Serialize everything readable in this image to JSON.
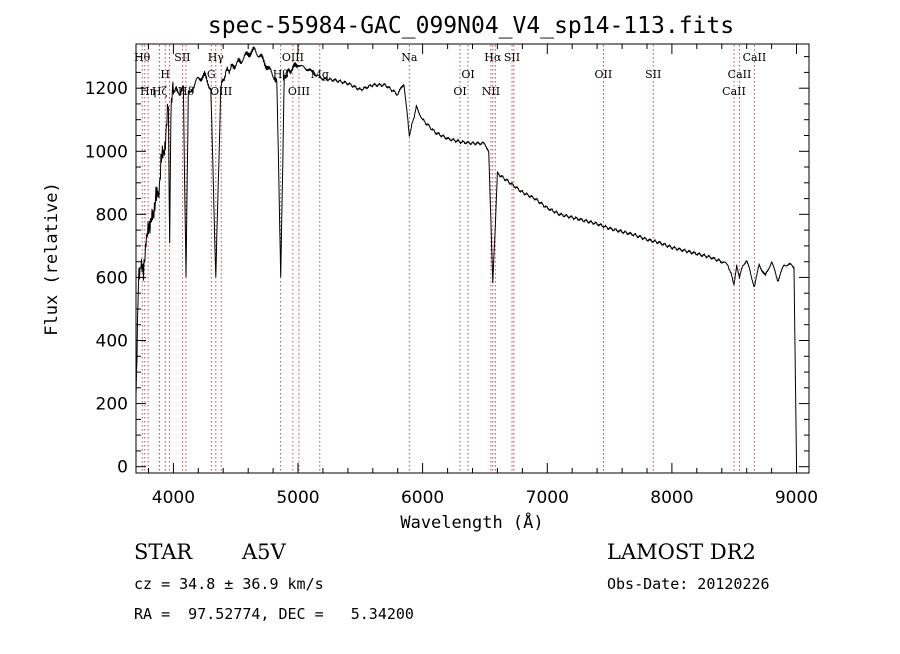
{
  "chart_data": {
    "type": "line",
    "title": "spec-55984-GAC_099N04_V4_sp14-113.fits",
    "xlabel": "Wavelength (Å)",
    "ylabel": "Flux (relative)",
    "xlim": [
      3700,
      9100
    ],
    "ylim": [
      -20,
      1340
    ],
    "grid": false,
    "x_ticks": [
      4000,
      5000,
      6000,
      7000,
      8000,
      9000
    ],
    "x_tick_labels": [
      "4000",
      "5000",
      "6000",
      "7000",
      "8000",
      "9000"
    ],
    "y_ticks": [
      0,
      200,
      400,
      600,
      800,
      1000,
      1200
    ],
    "y_tick_labels": [
      "0",
      "200",
      "400",
      "600",
      "800",
      "1000",
      "1200"
    ],
    "series": [
      {
        "x": [
          3700,
          3720,
          3740,
          3760,
          3780,
          3800,
          3820,
          3840,
          3860,
          3880,
          3900,
          3920,
          3940,
          3960,
          3970,
          3980,
          4000,
          4020,
          4050,
          4080,
          4101,
          4120,
          4150,
          4200,
          4250,
          4300,
          4340,
          4380,
          4420,
          4480,
          4550,
          4600,
          4650,
          4700,
          4750,
          4800,
          4830,
          4861,
          4890,
          4950,
          5000,
          5050,
          5100,
          5150,
          5200,
          5300,
          5400,
          5500,
          5600,
          5700,
          5800,
          5850,
          5893,
          5950,
          6000,
          6100,
          6200,
          6300,
          6400,
          6500,
          6530,
          6563,
          6600,
          6700,
          6800,
          6900,
          7000,
          7100,
          7200,
          7300,
          7400,
          7500,
          7600,
          7700,
          7800,
          7900,
          8000,
          8100,
          8200,
          8300,
          8400,
          8450,
          8498,
          8520,
          8542,
          8570,
          8600,
          8662,
          8700,
          8750,
          8800,
          8850,
          8900,
          8950,
          8980,
          9000
        ],
        "y": [
          250,
          560,
          680,
          580,
          750,
          720,
          820,
          760,
          900,
          820,
          1000,
          960,
          1080,
          1120,
          680,
          1150,
          1180,
          1210,
          1170,
          1200,
          600,
          1180,
          1200,
          1230,
          1240,
          1200,
          600,
          1200,
          1250,
          1270,
          1290,
          1310,
          1320,
          1300,
          1270,
          1240,
          1230,
          600,
          1240,
          1260,
          1275,
          1265,
          1255,
          1240,
          1230,
          1225,
          1215,
          1195,
          1210,
          1210,
          1180,
          1215,
          1050,
          1140,
          1100,
          1060,
          1040,
          1030,
          1025,
          1025,
          1000,
          580,
          930,
          900,
          870,
          850,
          820,
          800,
          790,
          780,
          770,
          755,
          745,
          735,
          720,
          710,
          695,
          685,
          675,
          665,
          650,
          640,
          580,
          640,
          600,
          640,
          655,
          570,
          640,
          605,
          650,
          590,
          640,
          640,
          630,
          10
        ]
      }
    ],
    "line_ids": [
      {
        "wavelength": 3750,
        "label": "Hθ",
        "row": 1
      },
      {
        "wavelength": 3771,
        "label": "",
        "row": 3
      },
      {
        "wavelength": 3797,
        "label": "Hη",
        "row": 3
      },
      {
        "wavelength": 3889,
        "label": "Hζ",
        "row": 3
      },
      {
        "wavelength": 3934,
        "label": "H",
        "row": 2
      },
      {
        "wavelength": 3968,
        "label": "",
        "row": 3
      },
      {
        "wavelength": 4072,
        "label": "SII",
        "row": 1
      },
      {
        "wavelength": 4101,
        "label": "Hδ",
        "row": 3
      },
      {
        "wavelength": 4304,
        "label": "G",
        "row": 2
      },
      {
        "wavelength": 4340,
        "label": "Hγ",
        "row": 1
      },
      {
        "wavelength": 4384,
        "label": "OIII",
        "row": 3
      },
      {
        "wavelength": 4861,
        "label": "Hβ",
        "row": 2
      },
      {
        "wavelength": 4959,
        "label": "OIII",
        "row": 1
      },
      {
        "wavelength": 5007,
        "label": "OIII",
        "row": 3
      },
      {
        "wavelength": 5175,
        "label": "Mg",
        "row": 2
      },
      {
        "wavelength": 5893,
        "label": "Na",
        "row": 1
      },
      {
        "wavelength": 6300,
        "label": "OI",
        "row": 3
      },
      {
        "wavelength": 6364,
        "label": "OI",
        "row": 2
      },
      {
        "wavelength": 6548,
        "label": "NII",
        "row": 3
      },
      {
        "wavelength": 6563,
        "label": "Hα",
        "row": 1
      },
      {
        "wavelength": 6583,
        "label": "",
        "row": 3
      },
      {
        "wavelength": 6717,
        "label": "SII",
        "row": 1
      },
      {
        "wavelength": 6731,
        "label": "",
        "row": 1
      },
      {
        "wavelength": 7450,
        "label": "OII",
        "row": 2
      },
      {
        "wavelength": 7850,
        "label": "SII",
        "row": 2
      },
      {
        "wavelength": 8498,
        "label": "CaII",
        "row": 3
      },
      {
        "wavelength": 8542,
        "label": "CaII",
        "row": 2
      },
      {
        "wavelength": 8662,
        "label": "CaII",
        "row": 1
      }
    ],
    "line_color": "#000000",
    "marker_color": "#b22222"
  },
  "info": {
    "object_class": "STAR",
    "subclass": "A5V",
    "survey": "LAMOST DR2",
    "cz": "cz = 34.8 ± 36.9 km/s",
    "obs_date": "Obs-Date: 20120226",
    "coords": "RA =  97.52774, DEC =   5.34200"
  }
}
